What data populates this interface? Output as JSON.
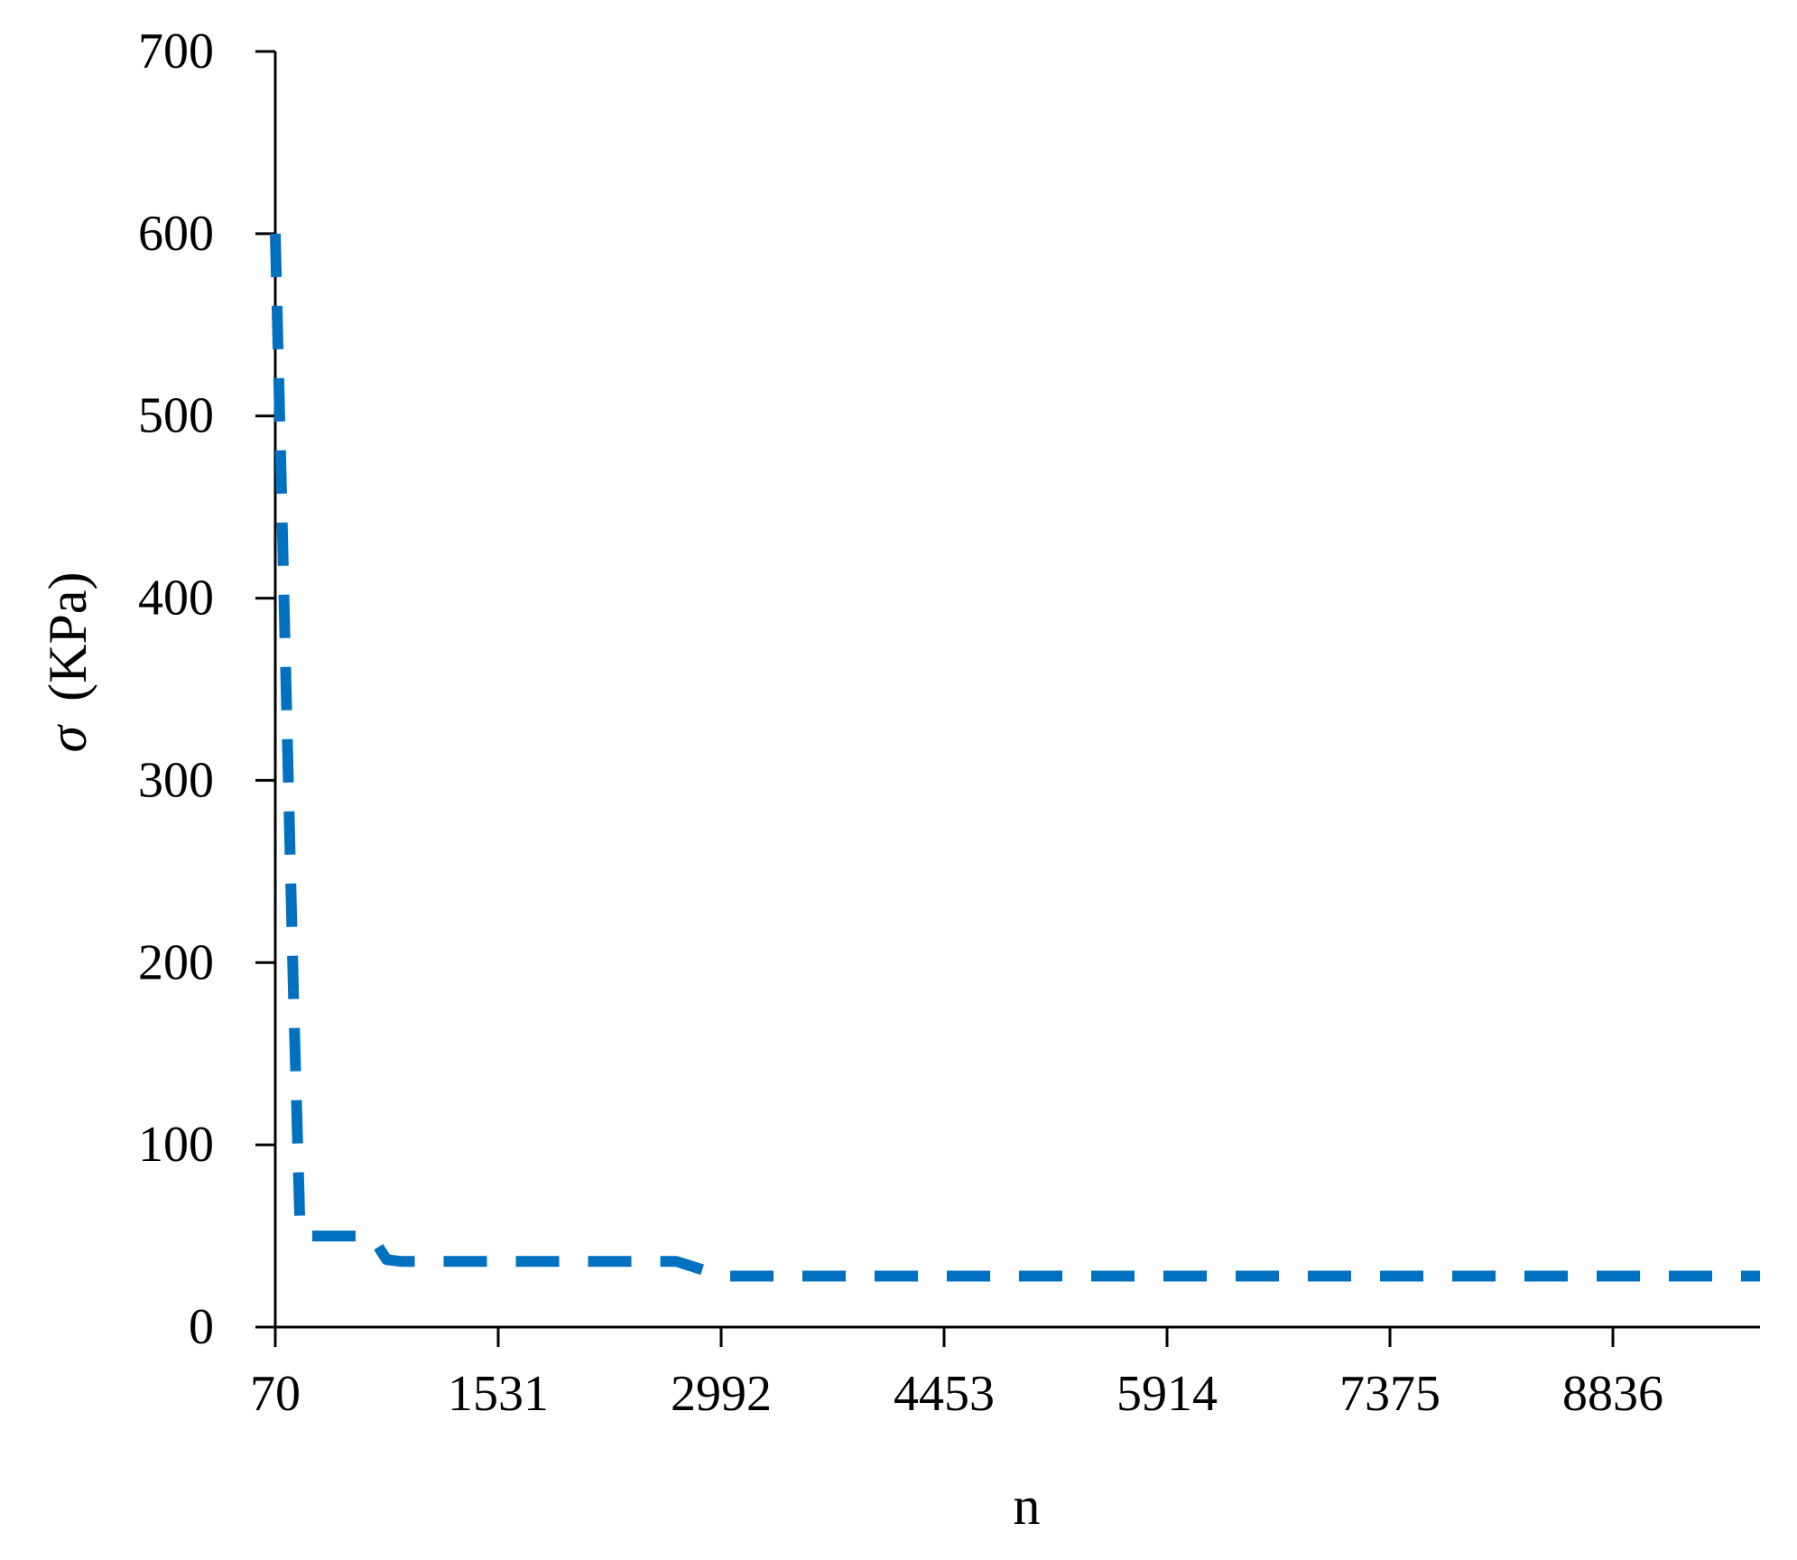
{
  "chart_data": {
    "type": "line",
    "xlabel": "n",
    "ylabel_symbol": "σ",
    "ylabel_unit": "(KPa)",
    "x_tick_labels": [
      "70",
      "1531",
      "2992",
      "4453",
      "5914",
      "7375",
      "8836"
    ],
    "y_tick_labels": [
      "0",
      "100",
      "200",
      "300",
      "400",
      "500",
      "600",
      "700"
    ],
    "xlim": [
      70,
      9800
    ],
    "ylim": [
      0,
      700
    ],
    "grid": false,
    "series": [
      {
        "line_style": "dashed",
        "color": "#0070C0",
        "x": [
          70,
          90,
          110,
          130,
          150,
          170,
          190,
          210,
          230,
          260,
          300,
          400,
          700,
          800,
          900,
          1200,
          2700,
          3000,
          3500,
          5000,
          7000,
          9800
        ],
        "y": [
          600,
          530,
          460,
          390,
          320,
          250,
          180,
          120,
          60,
          50,
          50,
          50,
          50,
          37,
          36,
          36,
          36,
          28,
          28,
          28,
          28,
          28
        ]
      }
    ]
  }
}
